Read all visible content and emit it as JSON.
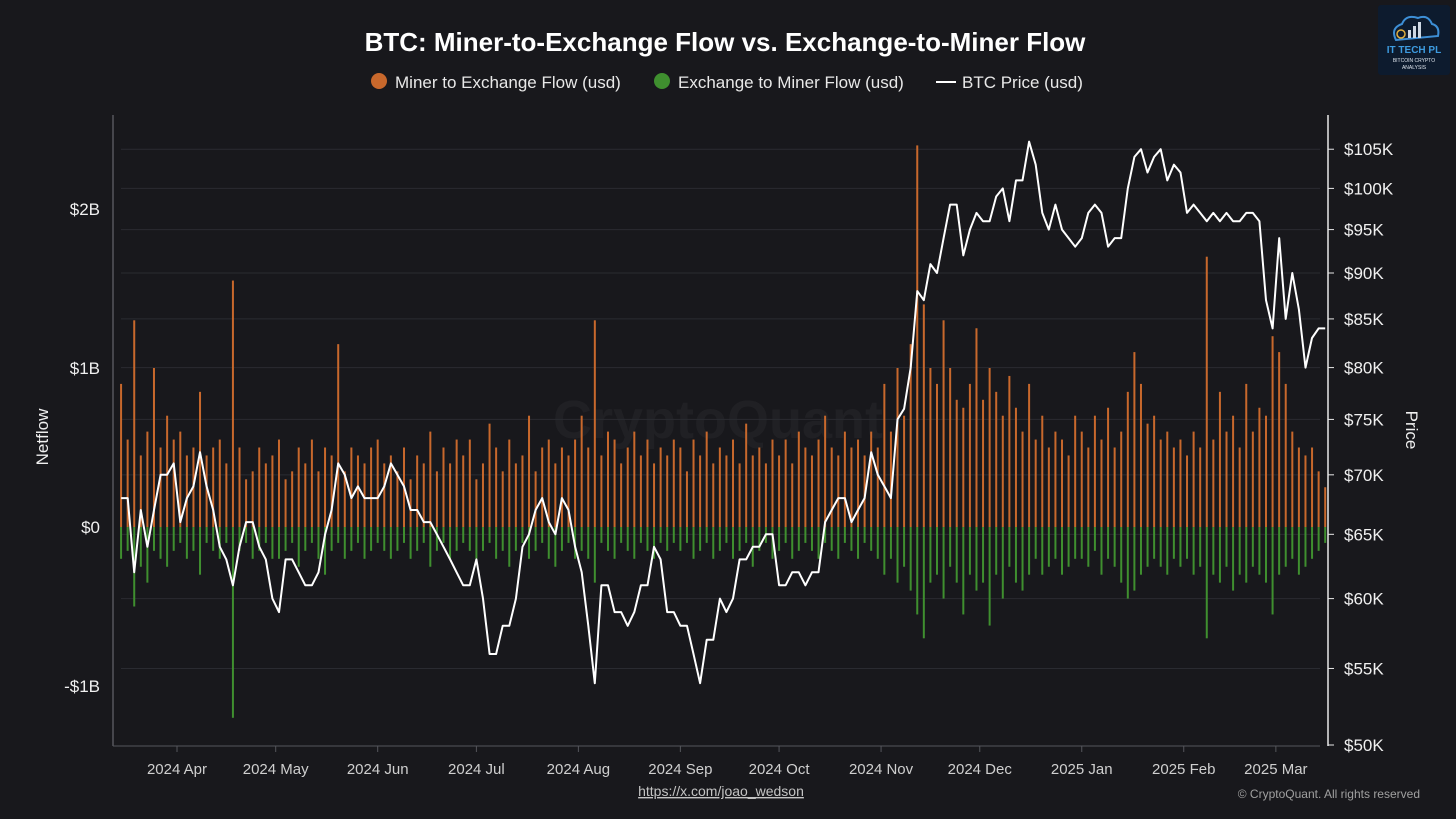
{
  "title": "BTC: Miner-to-Exchange Flow vs. Exchange-to-Miner Flow",
  "footer": {
    "link": "https://x.com/joao_wedson",
    "copyright": "© CryptoQuant. All rights reserved"
  },
  "watermark": "CryptoQuant",
  "logo": {
    "line1": "IT TECH PL",
    "line2": "BITCOIN CRYPTO",
    "line3": "ANALYSIS"
  },
  "colors": {
    "miner_to_exchange": "#c8682c",
    "exchange_to_miner": "#3f8f2f",
    "price": "#ffffff",
    "background": "#18181c"
  },
  "chart_data": {
    "type": "bar+line",
    "title": "BTC: Miner-to-Exchange Flow vs. Exchange-to-Miner Flow",
    "legend": {
      "position": "top",
      "entries": [
        "Miner to Exchange Flow (usd)",
        "Exchange to Miner Flow (usd)",
        "BTC Price (usd)"
      ]
    },
    "grid": true,
    "x_ticks": [
      "2024 Apr",
      "2024 May",
      "2024 Jun",
      "2024 Jul",
      "2024 Aug",
      "2024 Sep",
      "2024 Oct",
      "2024 Nov",
      "2024 Dec",
      "2025 Jan",
      "2025 Feb",
      "2025 Mar"
    ],
    "x_tick_dates": [
      "2024-04-01",
      "2024-05-01",
      "2024-06-01",
      "2024-07-01",
      "2024-08-01",
      "2024-09-01",
      "2024-10-01",
      "2024-11-01",
      "2024-12-01",
      "2025-01-01",
      "2025-02-01",
      "2025-03-01"
    ],
    "y_left": {
      "label": "Netflow",
      "unit": "USD billions",
      "ticks": [
        2,
        1,
        0,
        -1
      ],
      "tick_labels": [
        "$2B",
        "$1B",
        "$0",
        "-$1B"
      ]
    },
    "y_right": {
      "label": "Price",
      "scale": "log",
      "unit": "USD thousands",
      "ticks": [
        105,
        100,
        95,
        90,
        85,
        80,
        75,
        70,
        65,
        60,
        55,
        50
      ],
      "tick_labels": [
        "$105K",
        "$100K",
        "$95K",
        "$90K",
        "$85K",
        "$80K",
        "$75K",
        "$70K",
        "$65K",
        "$60K",
        "$55K",
        "$50K"
      ],
      "range": [
        50,
        110
      ]
    },
    "x": [
      "2024-03-15",
      "2024-03-17",
      "2024-03-19",
      "2024-03-21",
      "2024-03-23",
      "2024-03-25",
      "2024-03-27",
      "2024-03-29",
      "2024-03-31",
      "2024-04-02",
      "2024-04-04",
      "2024-04-06",
      "2024-04-08",
      "2024-04-10",
      "2024-04-12",
      "2024-04-14",
      "2024-04-16",
      "2024-04-18",
      "2024-04-20",
      "2024-04-22",
      "2024-04-24",
      "2024-04-26",
      "2024-04-28",
      "2024-04-30",
      "2024-05-02",
      "2024-05-04",
      "2024-05-06",
      "2024-05-08",
      "2024-05-10",
      "2024-05-12",
      "2024-05-14",
      "2024-05-16",
      "2024-05-18",
      "2024-05-20",
      "2024-05-22",
      "2024-05-24",
      "2024-05-26",
      "2024-05-28",
      "2024-05-30",
      "2024-06-01",
      "2024-06-03",
      "2024-06-05",
      "2024-06-07",
      "2024-06-09",
      "2024-06-11",
      "2024-06-13",
      "2024-06-15",
      "2024-06-17",
      "2024-06-19",
      "2024-06-21",
      "2024-06-23",
      "2024-06-25",
      "2024-06-27",
      "2024-06-29",
      "2024-07-01",
      "2024-07-03",
      "2024-07-05",
      "2024-07-07",
      "2024-07-09",
      "2024-07-11",
      "2024-07-13",
      "2024-07-15",
      "2024-07-17",
      "2024-07-19",
      "2024-07-21",
      "2024-07-23",
      "2024-07-25",
      "2024-07-27",
      "2024-07-29",
      "2024-07-31",
      "2024-08-02",
      "2024-08-04",
      "2024-08-06",
      "2024-08-08",
      "2024-08-10",
      "2024-08-12",
      "2024-08-14",
      "2024-08-16",
      "2024-08-18",
      "2024-08-20",
      "2024-08-22",
      "2024-08-24",
      "2024-08-26",
      "2024-08-28",
      "2024-08-30",
      "2024-09-01",
      "2024-09-03",
      "2024-09-05",
      "2024-09-07",
      "2024-09-09",
      "2024-09-11",
      "2024-09-13",
      "2024-09-15",
      "2024-09-17",
      "2024-09-19",
      "2024-09-21",
      "2024-09-23",
      "2024-09-25",
      "2024-09-27",
      "2024-09-29",
      "2024-10-01",
      "2024-10-03",
      "2024-10-05",
      "2024-10-07",
      "2024-10-09",
      "2024-10-11",
      "2024-10-13",
      "2024-10-15",
      "2024-10-17",
      "2024-10-19",
      "2024-10-21",
      "2024-10-23",
      "2024-10-25",
      "2024-10-27",
      "2024-10-29",
      "2024-10-31",
      "2024-11-02",
      "2024-11-04",
      "2024-11-06",
      "2024-11-08",
      "2024-11-10",
      "2024-11-12",
      "2024-11-14",
      "2024-11-16",
      "2024-11-18",
      "2024-11-20",
      "2024-11-22",
      "2024-11-24",
      "2024-11-26",
      "2024-11-28",
      "2024-11-30",
      "2024-12-02",
      "2024-12-04",
      "2024-12-06",
      "2024-12-08",
      "2024-12-10",
      "2024-12-12",
      "2024-12-14",
      "2024-12-16",
      "2024-12-18",
      "2024-12-20",
      "2024-12-22",
      "2024-12-24",
      "2024-12-26",
      "2024-12-28",
      "2024-12-30",
      "2025-01-01",
      "2025-01-03",
      "2025-01-05",
      "2025-01-07",
      "2025-01-09",
      "2025-01-11",
      "2025-01-13",
      "2025-01-15",
      "2025-01-17",
      "2025-01-19",
      "2025-01-21",
      "2025-01-23",
      "2025-01-25",
      "2025-01-27",
      "2025-01-29",
      "2025-01-31",
      "2025-02-02",
      "2025-02-04",
      "2025-02-06",
      "2025-02-08",
      "2025-02-10",
      "2025-02-12",
      "2025-02-14",
      "2025-02-16",
      "2025-02-18",
      "2025-02-20",
      "2025-02-22",
      "2025-02-24",
      "2025-02-26",
      "2025-02-28",
      "2025-03-02",
      "2025-03-04",
      "2025-03-06",
      "2025-03-08",
      "2025-03-10",
      "2025-03-12",
      "2025-03-14",
      "2025-03-16"
    ],
    "series": [
      {
        "name": "Miner to Exchange Flow (usd)",
        "type": "bar",
        "axis": "left",
        "unit": "USD billions",
        "values": [
          0.9,
          0.55,
          1.3,
          0.45,
          0.6,
          1.0,
          0.5,
          0.7,
          0.55,
          0.6,
          0.45,
          0.5,
          0.85,
          0.45,
          0.5,
          0.55,
          0.4,
          1.55,
          0.5,
          0.3,
          0.35,
          0.5,
          0.4,
          0.45,
          0.55,
          0.3,
          0.35,
          0.5,
          0.4,
          0.55,
          0.35,
          0.5,
          0.45,
          1.15,
          0.35,
          0.5,
          0.45,
          0.4,
          0.5,
          0.55,
          0.4,
          0.45,
          0.35,
          0.5,
          0.3,
          0.45,
          0.4,
          0.6,
          0.35,
          0.5,
          0.4,
          0.55,
          0.45,
          0.55,
          0.3,
          0.4,
          0.65,
          0.5,
          0.35,
          0.55,
          0.4,
          0.45,
          0.7,
          0.35,
          0.5,
          0.55,
          0.4,
          0.5,
          0.45,
          0.55,
          0.7,
          0.5,
          1.3,
          0.45,
          0.6,
          0.55,
          0.4,
          0.5,
          0.6,
          0.45,
          0.55,
          0.4,
          0.5,
          0.45,
          0.55,
          0.5,
          0.35,
          0.55,
          0.45,
          0.6,
          0.4,
          0.5,
          0.45,
          0.55,
          0.4,
          0.65,
          0.45,
          0.5,
          0.4,
          0.55,
          0.45,
          0.55,
          0.4,
          0.6,
          0.5,
          0.45,
          0.55,
          0.7,
          0.5,
          0.45,
          0.6,
          0.5,
          0.55,
          0.45,
          0.6,
          0.5,
          0.9,
          0.6,
          1.0,
          0.7,
          1.15,
          2.4,
          1.4,
          1.0,
          0.9,
          1.3,
          1.0,
          0.8,
          0.75,
          0.9,
          1.25,
          0.8,
          1.0,
          0.85,
          0.7,
          0.95,
          0.75,
          0.6,
          0.9,
          0.55,
          0.7,
          0.5,
          0.6,
          0.55,
          0.45,
          0.7,
          0.6,
          0.5,
          0.7,
          0.55,
          0.75,
          0.5,
          0.6,
          0.85,
          1.1,
          0.9,
          0.65,
          0.7,
          0.55,
          0.6,
          0.5,
          0.55,
          0.45,
          0.6,
          0.5,
          1.7,
          0.55,
          0.85,
          0.6,
          0.7,
          0.5,
          0.9,
          0.6,
          0.75,
          0.7,
          1.2,
          1.1,
          0.9,
          0.6,
          0.5,
          0.45,
          0.5,
          0.35,
          0.25
        ]
      },
      {
        "name": "Exchange to Miner Flow (usd)",
        "type": "bar",
        "axis": "left",
        "unit": "USD billions",
        "values": [
          -0.2,
          -0.15,
          -0.5,
          -0.25,
          -0.35,
          -0.15,
          -0.2,
          -0.25,
          -0.15,
          -0.1,
          -0.2,
          -0.15,
          -0.3,
          -0.1,
          -0.15,
          -0.2,
          -0.1,
          -1.2,
          -0.15,
          -0.1,
          -0.2,
          -0.15,
          -0.1,
          -0.2,
          -0.2,
          -0.15,
          -0.1,
          -0.25,
          -0.15,
          -0.1,
          -0.2,
          -0.3,
          -0.15,
          -0.1,
          -0.2,
          -0.15,
          -0.1,
          -0.2,
          -0.15,
          -0.1,
          -0.15,
          -0.2,
          -0.15,
          -0.1,
          -0.2,
          -0.15,
          -0.1,
          -0.25,
          -0.15,
          -0.1,
          -0.2,
          -0.15,
          -0.1,
          -0.15,
          -0.2,
          -0.15,
          -0.1,
          -0.2,
          -0.15,
          -0.25,
          -0.15,
          -0.1,
          -0.2,
          -0.15,
          -0.1,
          -0.2,
          -0.25,
          -0.15,
          -0.1,
          -0.2,
          -0.15,
          -0.2,
          -0.35,
          -0.1,
          -0.15,
          -0.2,
          -0.1,
          -0.15,
          -0.2,
          -0.1,
          -0.15,
          -0.2,
          -0.1,
          -0.15,
          -0.1,
          -0.15,
          -0.1,
          -0.2,
          -0.15,
          -0.1,
          -0.2,
          -0.15,
          -0.1,
          -0.2,
          -0.15,
          -0.1,
          -0.25,
          -0.15,
          -0.1,
          -0.2,
          -0.15,
          -0.1,
          -0.2,
          -0.15,
          -0.1,
          -0.15,
          -0.2,
          -0.1,
          -0.15,
          -0.2,
          -0.1,
          -0.15,
          -0.2,
          -0.1,
          -0.15,
          -0.2,
          -0.3,
          -0.2,
          -0.35,
          -0.25,
          -0.4,
          -0.55,
          -0.7,
          -0.35,
          -0.3,
          -0.45,
          -0.25,
          -0.35,
          -0.55,
          -0.3,
          -0.4,
          -0.35,
          -0.62,
          -0.3,
          -0.45,
          -0.25,
          -0.35,
          -0.4,
          -0.3,
          -0.2,
          -0.3,
          -0.25,
          -0.2,
          -0.3,
          -0.25,
          -0.2,
          -0.2,
          -0.25,
          -0.15,
          -0.3,
          -0.2,
          -0.25,
          -0.35,
          -0.45,
          -0.4,
          -0.3,
          -0.25,
          -0.2,
          -0.25,
          -0.3,
          -0.2,
          -0.25,
          -0.2,
          -0.3,
          -0.25,
          -0.7,
          -0.3,
          -0.35,
          -0.25,
          -0.4,
          -0.3,
          -0.35,
          -0.25,
          -0.3,
          -0.35,
          -0.55,
          -0.3,
          -0.25,
          -0.2,
          -0.3,
          -0.25,
          -0.2,
          -0.15,
          -0.1
        ]
      },
      {
        "name": "BTC Price (usd)",
        "type": "line",
        "axis": "right",
        "unit": "USD thousands",
        "values": [
          68,
          68,
          62,
          67,
          64,
          67,
          70,
          70,
          71,
          66,
          68,
          69,
          72,
          69,
          67,
          64,
          63,
          61,
          64,
          66,
          66,
          64,
          63,
          60,
          59,
          63,
          63,
          62,
          61,
          61,
          62,
          65,
          67,
          71,
          70,
          68,
          69,
          68,
          68,
          68,
          69,
          71,
          70,
          69,
          67,
          67,
          66,
          66,
          65,
          64,
          63,
          62,
          61,
          61,
          63,
          60,
          56,
          56,
          58,
          58,
          60,
          64,
          65,
          67,
          68,
          66,
          65,
          68,
          67,
          64,
          62,
          58,
          54,
          61,
          61,
          59,
          59,
          58,
          59,
          61,
          61,
          64,
          63,
          59,
          59,
          58,
          58,
          56,
          54,
          57,
          57,
          60,
          59,
          60,
          63,
          63,
          64,
          64,
          65,
          65,
          61,
          61,
          62,
          62,
          61,
          62,
          62,
          66,
          67,
          68,
          68,
          66,
          67,
          68,
          72,
          70,
          69,
          68,
          75,
          76,
          80,
          88,
          87,
          91,
          90,
          94,
          98,
          98,
          92,
          95,
          97,
          96,
          96,
          99,
          100,
          96,
          101,
          101,
          106,
          103,
          97,
          95,
          98,
          95,
          94,
          93,
          94,
          97,
          98,
          97,
          93,
          94,
          94,
          100,
          104,
          105,
          102,
          104,
          105,
          101,
          103,
          102,
          97,
          98,
          97,
          96,
          97,
          96,
          97,
          96,
          96,
          97,
          97,
          96,
          87,
          84,
          94,
          85,
          90,
          86,
          80,
          83,
          84,
          84
        ]
      }
    ]
  }
}
